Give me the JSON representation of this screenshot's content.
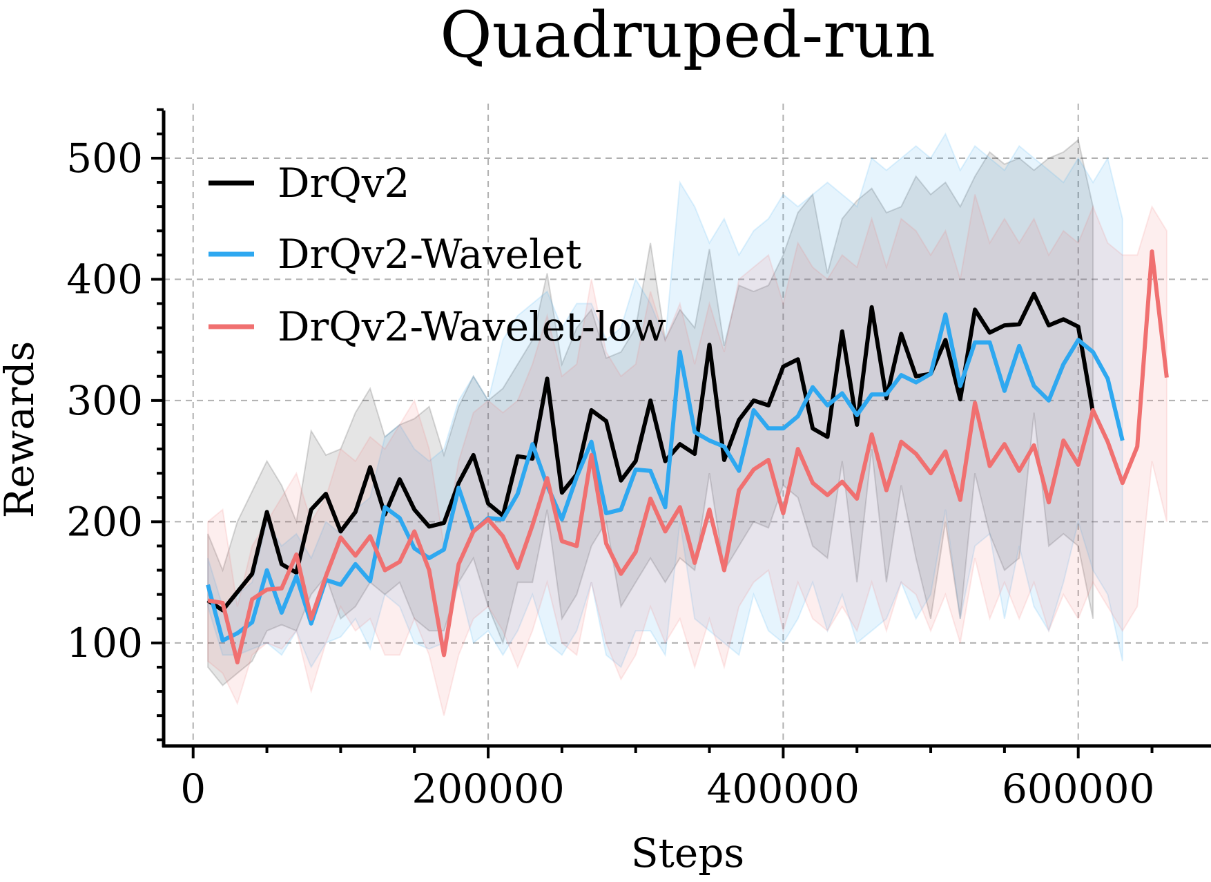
{
  "chart_data": {
    "type": "line",
    "title": "Quadruped-run",
    "xlabel": "Steps",
    "ylabel": "Rewards",
    "xlim": [
      -20000,
      690000
    ],
    "ylim": [
      15,
      545
    ],
    "x_ticks": [
      0,
      200000,
      400000,
      600000
    ],
    "x_tick_labels": [
      "0",
      "200000",
      "400000",
      "600000"
    ],
    "y_ticks": [
      100,
      200,
      300,
      400,
      500
    ],
    "y_tick_labels": [
      "100",
      "200",
      "300",
      "400",
      "500"
    ],
    "grid": true,
    "legend_position": "upper-left",
    "series": [
      {
        "name": "DrQv2",
        "color": "#000000",
        "x": [
          10000,
          20000,
          30000,
          40000,
          50000,
          60000,
          70000,
          80000,
          90000,
          100000,
          110000,
          120000,
          130000,
          140000,
          150000,
          160000,
          170000,
          180000,
          190000,
          200000,
          210000,
          220000,
          230000,
          240000,
          250000,
          260000,
          270000,
          280000,
          290000,
          300000,
          310000,
          320000,
          330000,
          340000,
          350000,
          360000,
          370000,
          380000,
          390000,
          400000,
          410000,
          420000,
          430000,
          440000,
          450000,
          460000,
          470000,
          480000,
          490000,
          500000,
          510000,
          520000,
          530000,
          540000,
          550000,
          560000,
          570000,
          580000,
          590000,
          600000,
          610000
        ],
        "y": [
          135,
          127,
          142,
          157,
          208,
          165,
          158,
          210,
          223,
          192,
          208,
          245,
          206,
          235,
          210,
          196,
          199,
          232,
          255,
          215,
          205,
          254,
          252,
          318,
          224,
          239,
          292,
          283,
          234,
          250,
          300,
          250,
          264,
          256,
          346,
          251,
          284,
          300,
          296,
          328,
          334,
          277,
          270,
          357,
          280,
          377,
          302,
          355,
          320,
          322,
          350,
          301,
          375,
          356,
          362,
          363,
          388,
          362,
          367,
          361,
          290
        ],
        "upper": [
          190,
          160,
          200,
          225,
          250,
          230,
          200,
          275,
          255,
          260,
          290,
          310,
          270,
          280,
          285,
          295,
          255,
          295,
          320,
          300,
          310,
          330,
          350,
          405,
          330,
          360,
          375,
          335,
          340,
          360,
          430,
          350,
          375,
          360,
          425,
          345,
          395,
          390,
          395,
          420,
          455,
          470,
          405,
          450,
          465,
          475,
          455,
          460,
          485,
          470,
          480,
          460,
          485,
          505,
          495,
          500,
          490,
          500,
          505,
          515,
          460
        ],
        "lower": [
          80,
          65,
          75,
          85,
          110,
          115,
          110,
          140,
          155,
          120,
          130,
          150,
          140,
          150,
          120,
          110,
          110,
          150,
          170,
          130,
          100,
          150,
          150,
          210,
          120,
          140,
          180,
          200,
          130,
          150,
          170,
          150,
          170,
          160,
          240,
          160,
          180,
          200,
          195,
          230,
          220,
          180,
          170,
          250,
          150,
          260,
          150,
          230,
          170,
          120,
          200,
          120,
          240,
          190,
          160,
          170,
          290,
          180,
          190,
          180,
          120
        ]
      },
      {
        "name": "DrQv2-Wavelet",
        "color": "#2ea8f0",
        "x": [
          10000,
          20000,
          30000,
          40000,
          50000,
          60000,
          70000,
          80000,
          90000,
          100000,
          110000,
          120000,
          130000,
          140000,
          150000,
          160000,
          170000,
          180000,
          190000,
          200000,
          210000,
          220000,
          230000,
          240000,
          250000,
          260000,
          270000,
          280000,
          290000,
          300000,
          310000,
          320000,
          330000,
          340000,
          350000,
          360000,
          370000,
          380000,
          390000,
          400000,
          410000,
          420000,
          430000,
          440000,
          450000,
          460000,
          470000,
          480000,
          490000,
          500000,
          510000,
          520000,
          530000,
          540000,
          550000,
          560000,
          570000,
          580000,
          590000,
          600000,
          610000,
          620000,
          630000
        ],
        "y": [
          148,
          102,
          108,
          117,
          160,
          125,
          155,
          116,
          152,
          148,
          165,
          151,
          212,
          203,
          178,
          170,
          177,
          228,
          192,
          203,
          202,
          223,
          264,
          230,
          202,
          237,
          266,
          207,
          210,
          243,
          242,
          212,
          340,
          274,
          267,
          262,
          242,
          292,
          277,
          277,
          287,
          311,
          296,
          306,
          288,
          305,
          305,
          321,
          315,
          322,
          371,
          312,
          348,
          348,
          308,
          345,
          312,
          300,
          330,
          350,
          340,
          318,
          267
        ],
        "upper": [
          170,
          130,
          140,
          150,
          200,
          180,
          190,
          170,
          200,
          190,
          210,
          220,
          270,
          280,
          260,
          250,
          260,
          300,
          320,
          300,
          350,
          370,
          380,
          390,
          360,
          380,
          380,
          350,
          360,
          400,
          380,
          350,
          480,
          460,
          430,
          450,
          420,
          440,
          450,
          470,
          460,
          470,
          480,
          470,
          460,
          500,
          490,
          500,
          510,
          500,
          520,
          490,
          510,
          500,
          490,
          510,
          500,
          490,
          480,
          500,
          480,
          500,
          450
        ],
        "lower": [
          130,
          90,
          90,
          95,
          100,
          90,
          110,
          80,
          100,
          105,
          120,
          95,
          140,
          130,
          100,
          95,
          100,
          150,
          100,
          110,
          90,
          110,
          140,
          100,
          90,
          110,
          150,
          90,
          80,
          110,
          110,
          90,
          200,
          120,
          110,
          100,
          90,
          140,
          110,
          100,
          120,
          150,
          110,
          140,
          100,
          110,
          120,
          150,
          120,
          140,
          210,
          120,
          180,
          190,
          120,
          180,
          130,
          110,
          150,
          200,
          160,
          140,
          85
        ]
      },
      {
        "name": "DrQv2-Wavelet-low",
        "color": "#f07070",
        "x": [
          10000,
          20000,
          30000,
          40000,
          50000,
          60000,
          70000,
          80000,
          90000,
          100000,
          110000,
          120000,
          130000,
          140000,
          150000,
          160000,
          170000,
          180000,
          190000,
          200000,
          210000,
          220000,
          230000,
          240000,
          250000,
          260000,
          270000,
          280000,
          290000,
          300000,
          310000,
          320000,
          330000,
          340000,
          350000,
          360000,
          370000,
          380000,
          390000,
          400000,
          410000,
          420000,
          430000,
          440000,
          450000,
          460000,
          470000,
          480000,
          490000,
          500000,
          510000,
          520000,
          530000,
          540000,
          550000,
          560000,
          570000,
          580000,
          590000,
          600000,
          610000,
          620000,
          630000,
          640000,
          650000,
          660000
        ],
        "y": [
          135,
          133,
          84,
          136,
          144,
          145,
          173,
          120,
          155,
          187,
          172,
          188,
          160,
          167,
          192,
          160,
          90,
          165,
          192,
          202,
          188,
          162,
          197,
          236,
          184,
          180,
          255,
          182,
          157,
          175,
          219,
          192,
          212,
          166,
          210,
          160,
          226,
          243,
          251,
          207,
          260,
          232,
          222,
          233,
          219,
          272,
          226,
          266,
          256,
          240,
          258,
          218,
          298,
          246,
          264,
          242,
          263,
          216,
          267,
          247,
          292,
          266,
          232,
          262,
          423,
          319
        ],
        "upper": [
          200,
          210,
          130,
          180,
          200,
          220,
          240,
          200,
          220,
          260,
          250,
          270,
          260,
          280,
          300,
          260,
          180,
          250,
          290,
          300,
          290,
          300,
          330,
          370,
          320,
          330,
          400,
          340,
          320,
          330,
          390,
          350,
          380,
          330,
          380,
          340,
          400,
          410,
          420,
          380,
          430,
          410,
          400,
          420,
          410,
          450,
          410,
          450,
          440,
          420,
          440,
          400,
          470,
          430,
          450,
          430,
          450,
          420,
          440,
          430,
          460,
          430,
          420,
          420,
          460,
          440
        ],
        "lower": [
          85,
          75,
          50,
          90,
          100,
          95,
          110,
          60,
          100,
          130,
          110,
          120,
          90,
          90,
          120,
          90,
          40,
          90,
          120,
          130,
          110,
          80,
          110,
          150,
          100,
          90,
          150,
          100,
          70,
          90,
          130,
          100,
          120,
          80,
          120,
          80,
          130,
          150,
          160,
          110,
          150,
          120,
          110,
          130,
          110,
          150,
          110,
          150,
          140,
          110,
          140,
          100,
          170,
          120,
          150,
          120,
          150,
          110,
          140,
          120,
          150,
          130,
          110,
          130,
          250,
          200
        ]
      }
    ]
  }
}
